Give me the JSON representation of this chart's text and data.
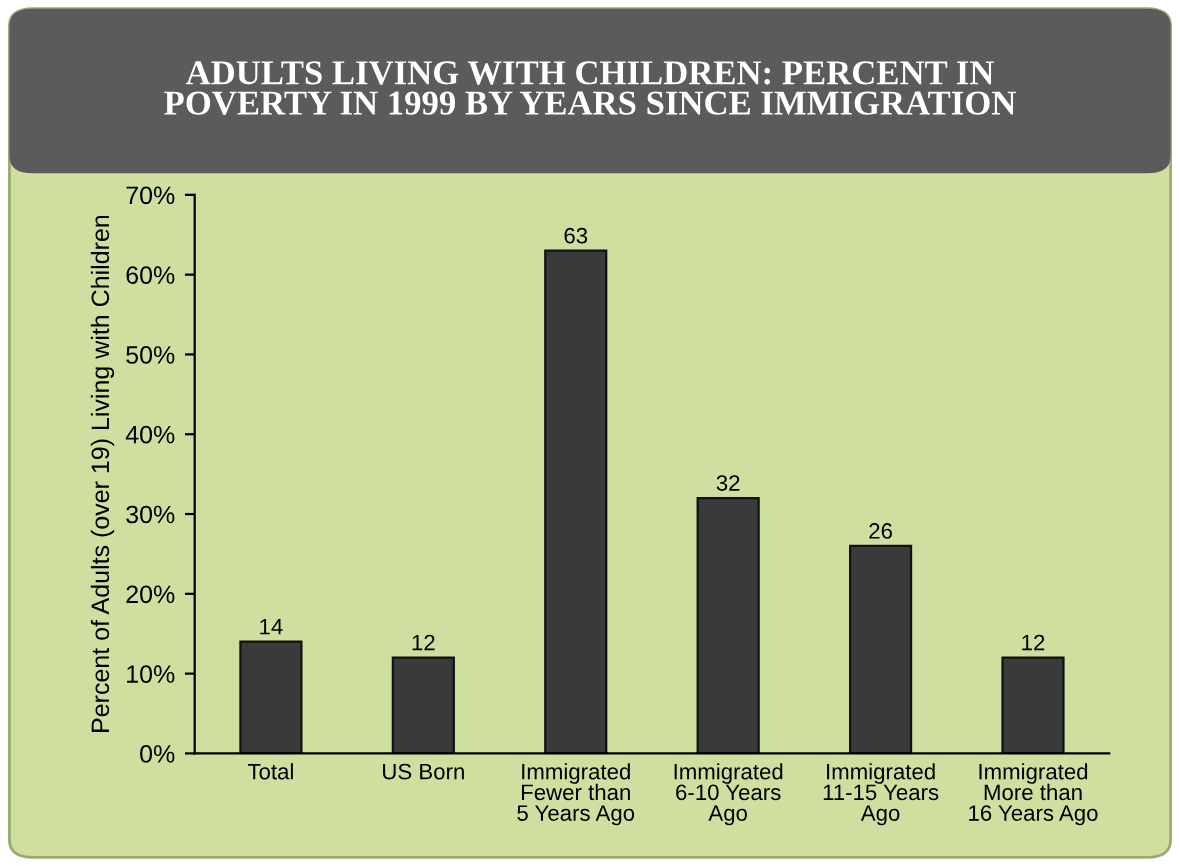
{
  "chart_data": {
    "type": "bar",
    "title": "ADULTS LIVING WITH CHILDREN: PERCENT IN\nPOVERTY IN 1999 BY YEARS SINCE IMMIGRATION",
    "ylabel": "Percent of Adults (over 19) Living with Children",
    "categories": [
      "Total",
      "US Born",
      "Immigrated\nFewer than\n5 Years Ago",
      "Immigrated\n6-10 Years\nAgo",
      "Immigrated\n11-15 Years\nAgo",
      "Immigrated\nMore than\n16 Years Ago"
    ],
    "values": [
      14,
      12,
      63,
      32,
      26,
      12
    ],
    "color": "#3a3a3a",
    "ylim": [
      0,
      70
    ],
    "yticks": [
      {
        "value": 0,
        "label": "0%"
      },
      {
        "value": 10,
        "label": "10%"
      },
      {
        "value": 20,
        "label": "20%"
      },
      {
        "value": 30,
        "label": "30%"
      },
      {
        "value": 40,
        "label": "40%"
      },
      {
        "value": 50,
        "label": "50%"
      },
      {
        "value": 60,
        "label": "60%"
      },
      {
        "value": 70,
        "label": "70%"
      }
    ],
    "data_labels": true,
    "grid": false,
    "legend": false
  }
}
